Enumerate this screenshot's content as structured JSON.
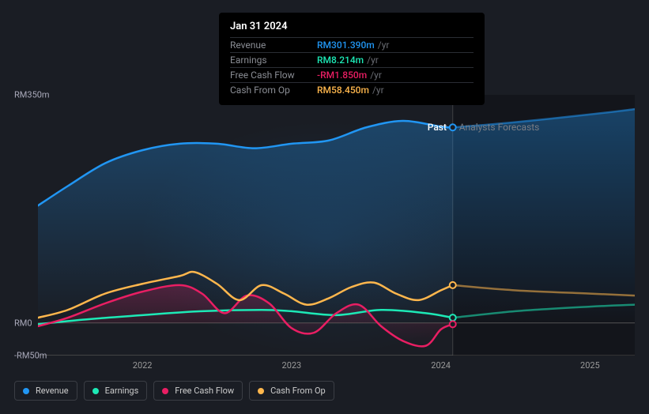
{
  "tooltip": {
    "date": "Jan 31 2024",
    "rows": [
      {
        "label": "Revenue",
        "value": "RM301.390m",
        "unit": "/yr",
        "color": "#2196f3"
      },
      {
        "label": "Earnings",
        "value": "RM8.214m",
        "unit": "/yr",
        "color": "#1de9b6"
      },
      {
        "label": "Free Cash Flow",
        "value": "-RM1.850m",
        "unit": "/yr",
        "color": "#e91e63"
      },
      {
        "label": "Cash From Op",
        "value": "RM58.450m",
        "unit": "/yr",
        "color": "#ffb74d"
      }
    ]
  },
  "chart": {
    "type": "line-area",
    "background_color": "#1a1d24",
    "y_axis": {
      "min": -50,
      "max": 350,
      "ticks": [
        {
          "v": 350,
          "label": "RM350m"
        },
        {
          "v": 0,
          "label": "RM0"
        },
        {
          "v": -50,
          "label": "-RM50m"
        }
      ]
    },
    "x_axis": {
      "min": 2021.3,
      "max": 2025.3,
      "ticks": [
        {
          "v": 2022,
          "label": "2022"
        },
        {
          "v": 2023,
          "label": "2023"
        },
        {
          "v": 2024,
          "label": "2024"
        },
        {
          "v": 2025,
          "label": "2025"
        }
      ]
    },
    "present_x": 2024.08,
    "regions": {
      "past_label": "Past",
      "forecast_label": "Analysts Forecasts"
    },
    "series": [
      {
        "name": "Revenue",
        "color": "#2196f3",
        "fill": true,
        "fill_opacity_top": 0.35,
        "points": [
          [
            2021.3,
            180
          ],
          [
            2021.5,
            210
          ],
          [
            2021.75,
            245
          ],
          [
            2022.0,
            265
          ],
          [
            2022.25,
            275
          ],
          [
            2022.5,
            275
          ],
          [
            2022.75,
            268
          ],
          [
            2023.0,
            275
          ],
          [
            2023.25,
            280
          ],
          [
            2023.5,
            300
          ],
          [
            2023.75,
            310
          ],
          [
            2024.0,
            301
          ],
          [
            2024.08,
            300
          ],
          [
            2024.5,
            308
          ],
          [
            2025.0,
            320
          ],
          [
            2025.3,
            328
          ]
        ],
        "marker_at": 2024.08
      },
      {
        "name": "Earnings",
        "color": "#1de9b6",
        "fill": false,
        "points": [
          [
            2021.3,
            -2
          ],
          [
            2021.6,
            5
          ],
          [
            2022.0,
            12
          ],
          [
            2022.4,
            18
          ],
          [
            2022.8,
            20
          ],
          [
            2023.0,
            18
          ],
          [
            2023.3,
            12
          ],
          [
            2023.6,
            20
          ],
          [
            2023.9,
            15
          ],
          [
            2024.08,
            8
          ],
          [
            2024.5,
            18
          ],
          [
            2025.0,
            25
          ],
          [
            2025.3,
            28
          ]
        ],
        "marker_at": 2024.08
      },
      {
        "name": "Free Cash Flow",
        "color": "#e91e63",
        "fill": true,
        "fill_opacity_top": 0.25,
        "points": [
          [
            2021.3,
            -5
          ],
          [
            2021.5,
            8
          ],
          [
            2021.75,
            30
          ],
          [
            2022.0,
            48
          ],
          [
            2022.25,
            58
          ],
          [
            2022.4,
            45
          ],
          [
            2022.55,
            15
          ],
          [
            2022.7,
            42
          ],
          [
            2022.85,
            30
          ],
          [
            2023.0,
            -8
          ],
          [
            2023.15,
            -15
          ],
          [
            2023.3,
            15
          ],
          [
            2023.45,
            28
          ],
          [
            2023.6,
            -5
          ],
          [
            2023.75,
            -28
          ],
          [
            2023.9,
            -35
          ],
          [
            2024.0,
            -10
          ],
          [
            2024.08,
            -2
          ]
        ],
        "marker_at": 2024.08
      },
      {
        "name": "Cash From Op",
        "color": "#ffb74d",
        "fill": false,
        "points": [
          [
            2021.3,
            8
          ],
          [
            2021.5,
            20
          ],
          [
            2021.75,
            45
          ],
          [
            2022.0,
            60
          ],
          [
            2022.25,
            72
          ],
          [
            2022.35,
            78
          ],
          [
            2022.5,
            60
          ],
          [
            2022.65,
            35
          ],
          [
            2022.8,
            58
          ],
          [
            2022.95,
            45
          ],
          [
            2023.1,
            28
          ],
          [
            2023.25,
            38
          ],
          [
            2023.4,
            55
          ],
          [
            2023.55,
            62
          ],
          [
            2023.7,
            45
          ],
          [
            2023.85,
            35
          ],
          [
            2024.0,
            50
          ],
          [
            2024.08,
            58
          ],
          [
            2024.5,
            50
          ],
          [
            2025.0,
            45
          ],
          [
            2025.3,
            42
          ]
        ],
        "marker_at": 2024.08
      }
    ],
    "line_width": 2.5,
    "marker_radius": 4
  },
  "legend": [
    {
      "label": "Revenue",
      "color": "#2196f3"
    },
    {
      "label": "Earnings",
      "color": "#1de9b6"
    },
    {
      "label": "Free Cash Flow",
      "color": "#e91e63"
    },
    {
      "label": "Cash From Op",
      "color": "#ffb74d"
    }
  ]
}
